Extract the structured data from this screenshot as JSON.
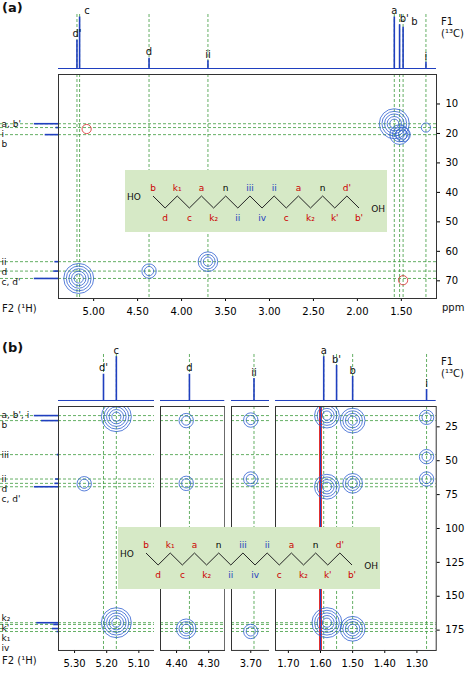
{
  "chart_data": [
    {
      "type": "nmr_2d",
      "title": "(a)",
      "x_label": "F2 (¹H)",
      "y_label": "F1 (¹³C)",
      "unit": "ppm",
      "x_segments": [
        {
          "xlim": [
            5.4,
            1.1
          ],
          "xticks": [
            {
              "value": 5,
              "label": "5.00"
            },
            {
              "value": 4.5,
              "label": "4.50"
            },
            {
              "value": 4,
              "label": "4.00"
            },
            {
              "value": 3.5,
              "label": "3.50"
            },
            {
              "value": 3,
              "label": "3.00"
            },
            {
              "value": 2.5,
              "label": "2.50"
            },
            {
              "value": 2,
              "label": "2.00"
            },
            {
              "value": 1.5,
              "label": "1.50"
            }
          ]
        }
      ],
      "ylim": [
        0,
        76
      ],
      "yticks": [
        10,
        20,
        30,
        40,
        50,
        60,
        70
      ],
      "proton_spectrum": {
        "color": "#1f3fbf",
        "labels": [
          "d'",
          "c",
          "d",
          "ii",
          "a",
          "b'",
          "b",
          "i"
        ],
        "x": [
          5.19,
          5.16,
          4.37,
          3.7,
          1.58,
          1.52,
          1.48,
          1.22
        ],
        "heights": [
          0.55,
          1.0,
          0.2,
          0.15,
          1.0,
          0.85,
          0.8,
          0.12
        ]
      },
      "carbon_spectrum": {
        "color": "#1f3fbf",
        "labels": [
          "a, b'",
          "i",
          "b",
          "ii",
          "d",
          "c, d'"
        ],
        "y": [
          16.7,
          18.0,
          20.4,
          63.5,
          66.7,
          69.2
        ],
        "heights": [
          1.0,
          0.1,
          0.55,
          0.15,
          0.2,
          1.0
        ]
      },
      "series": [
        {
          "color": "#2f5fd0",
          "x": [
            5.17,
            4.37,
            3.7,
            1.58,
            1.52,
            1.48,
            1.22
          ],
          "y": [
            69.2,
            66.7,
            63.5,
            16.7,
            20.4,
            20.4,
            18.0
          ],
          "intensity": [
            1.0,
            0.4,
            0.5,
            1.0,
            0.5,
            0.4,
            0.2
          ]
        },
        {
          "color": "#d62728",
          "x": [
            5.08,
            1.48
          ],
          "y": [
            18.5,
            69.8
          ],
          "intensity": [
            0.15,
            0.15
          ]
        }
      ],
      "structure": {
        "ends": [
          "HO",
          "OH"
        ],
        "labels": [
          "b",
          "d",
          "k₁",
          "c",
          "a",
          "k₂",
          "n",
          "ii",
          "iii",
          "iv",
          "ii",
          "c",
          "a",
          "k₂",
          "n",
          "k'",
          "d'",
          "b'"
        ],
        "colors": [
          "#cc0000",
          "#cc0000",
          "#cc0000",
          "#cc0000",
          "#cc0000",
          "#cc0000",
          "#000000",
          "#1f3fbf",
          "#1f3fbf",
          "#1f3fbf",
          "#1f3fbf",
          "#cc0000",
          "#cc0000",
          "#cc0000",
          "#000000",
          "#cc0000",
          "#cc0000",
          "#cc0000"
        ]
      }
    },
    {
      "type": "nmr_2d",
      "title": "(b)",
      "x_label": "F2 (¹H)",
      "y_label": "F1 (¹³C)",
      "x_segments": [
        {
          "xlim": [
            5.35,
            5.05
          ],
          "xticks": [
            {
              "value": 5.3,
              "label": "5.30"
            },
            {
              "value": 5.2,
              "label": "5.20"
            },
            {
              "value": 5.1,
              "label": "5.10"
            }
          ]
        },
        {
          "xlim": [
            4.45,
            4.25
          ],
          "xticks": [
            {
              "value": 4.4,
              "label": "4.40"
            },
            {
              "value": 4.3,
              "label": "4.30"
            }
          ]
        },
        {
          "xlim": [
            3.76,
            3.64
          ],
          "xticks": [
            {
              "value": 3.7,
              "label": "3.70"
            }
          ]
        },
        {
          "xlim": [
            1.74,
            1.24
          ],
          "xticks": [
            {
              "value": 1.7,
              "label": "1.70"
            },
            {
              "value": 1.6,
              "label": "1.60"
            },
            {
              "value": 1.5,
              "label": "1.50"
            },
            {
              "value": 1.4,
              "label": "1.40"
            },
            {
              "value": 1.3,
              "label": "1.30"
            }
          ]
        }
      ],
      "ylim": [
        10,
        190
      ],
      "yticks": [
        25,
        50,
        75,
        100,
        125,
        150,
        175
      ],
      "proton_spectrum": {
        "color": "#1f3fbf",
        "labels": [
          "d'",
          "c",
          "d",
          "ii",
          "a",
          "b'",
          "b",
          "i"
        ],
        "x": [
          5.21,
          5.17,
          4.36,
          3.69,
          1.59,
          1.55,
          1.5,
          1.27
        ],
        "heights": [
          0.6,
          1.0,
          0.6,
          0.5,
          1.0,
          0.8,
          0.55,
          0.25
        ]
      },
      "carbon_spectrum": {
        "color": "#1f3fbf",
        "labels": [
          "a, b', i",
          "b",
          "iii",
          "ii",
          "d",
          "c, d'",
          "k₂",
          "k'",
          "k₁",
          "iv"
        ],
        "y": [
          16.7,
          20.4,
          45.5,
          63.5,
          66.7,
          69.2,
          169.5,
          170.8,
          173.8,
          176.0
        ],
        "heights": [
          1.0,
          0.7,
          0.05,
          0.12,
          0.15,
          1.0,
          0.9,
          0.2,
          0.25,
          0.06
        ]
      },
      "series": [
        {
          "color": "#2f5fd0",
          "x": [
            5.17,
            5.17,
            5.27,
            4.37,
            4.37,
            4.37,
            3.7,
            3.7,
            3.7,
            1.58,
            1.58,
            1.58,
            1.5,
            1.5,
            1.5,
            1.27,
            1.27,
            1.27
          ],
          "y": [
            17.5,
            169.5,
            67.0,
            20.4,
            66.7,
            174.0,
            20.0,
            63.5,
            176.0,
            16.7,
            69.2,
            169.5,
            20.4,
            66.7,
            174.0,
            47.0,
            63.5,
            18.0
          ],
          "intensity": [
            1.0,
            1.0,
            0.3,
            0.4,
            0.3,
            0.5,
            0.3,
            0.3,
            0.4,
            0.8,
            0.7,
            0.9,
            0.7,
            0.5,
            0.7,
            0.4,
            0.3,
            0.3
          ]
        }
      ],
      "ridge": {
        "x": 1.6,
        "colors": [
          "#e03030",
          "#2040c0"
        ]
      },
      "structure": {
        "ends": [
          "HO",
          "OH"
        ],
        "labels": [
          "b",
          "d",
          "k₁",
          "c",
          "a",
          "k₂",
          "n",
          "ii",
          "iii",
          "iv",
          "ii",
          "c",
          "a",
          "k₂",
          "n",
          "k'",
          "d'",
          "b'"
        ],
        "colors": [
          "#cc0000",
          "#cc0000",
          "#cc0000",
          "#cc0000",
          "#cc0000",
          "#cc0000",
          "#000000",
          "#1f3fbf",
          "#1f3fbf",
          "#1f3fbf",
          "#1f3fbf",
          "#cc0000",
          "#cc0000",
          "#cc0000",
          "#000000",
          "#cc0000",
          "#cc0000",
          "#cc0000"
        ]
      }
    }
  ]
}
